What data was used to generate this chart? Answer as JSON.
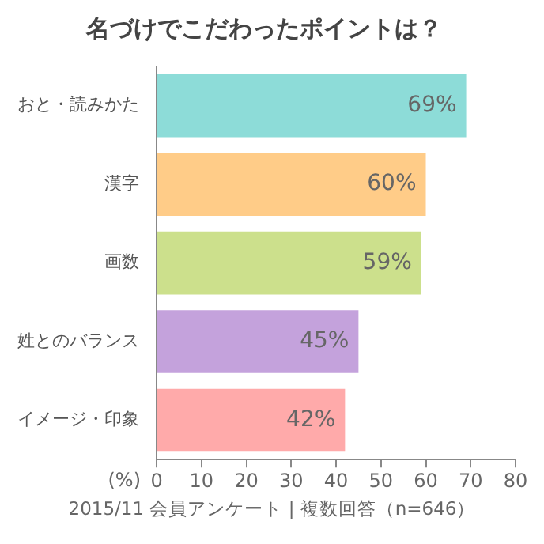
{
  "chart_data": {
    "type": "bar",
    "orientation": "horizontal",
    "title": "名づけでこだわったポイントは？",
    "xlabel": "(%)",
    "categories": [
      "おと・読みかた",
      "漢字",
      "画数",
      "姓とのバランス",
      "イメージ・印象"
    ],
    "values": [
      69,
      60,
      59,
      45,
      42
    ],
    "colors": [
      "#8ddcd8",
      "#ffcc88",
      "#cce08c",
      "#c4a2dc",
      "#ffaaaa"
    ],
    "value_labels": [
      "69%",
      "60%",
      "59%",
      "45%",
      "42%"
    ],
    "xlim": [
      0,
      80
    ],
    "xticks": [
      0,
      10,
      20,
      30,
      40,
      50,
      60,
      70,
      80
    ],
    "grid": false,
    "annotations": [
      "2015/11 会員アンケート | 複数回答（n=646）"
    ]
  }
}
